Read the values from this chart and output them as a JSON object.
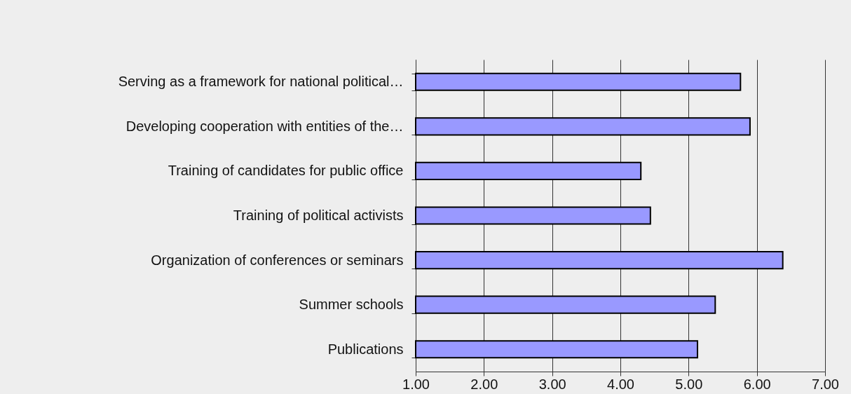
{
  "chart_data": {
    "type": "bar",
    "orientation": "horizontal",
    "categories": [
      "Serving as a framework for national political…",
      "Developing cooperation with entities of the…",
      "Training of candidates for public office",
      "Training of political activists",
      "Organization of conferences or seminars",
      "Summer schools",
      "Publications"
    ],
    "values": [
      5.76,
      5.9,
      4.3,
      4.44,
      6.38,
      5.39,
      5.13
    ],
    "color": "#9999ff",
    "xlim": [
      1,
      7
    ],
    "xticks": [
      {
        "value": 1,
        "label": "1.00"
      },
      {
        "value": 2,
        "label": "2.00"
      },
      {
        "value": 3,
        "label": "3.00"
      },
      {
        "value": 4,
        "label": "4.00"
      },
      {
        "value": 5,
        "label": "5.00"
      },
      {
        "value": 6,
        "label": "6.00"
      },
      {
        "value": 7,
        "label": "7.00"
      }
    ],
    "grid": "x"
  }
}
